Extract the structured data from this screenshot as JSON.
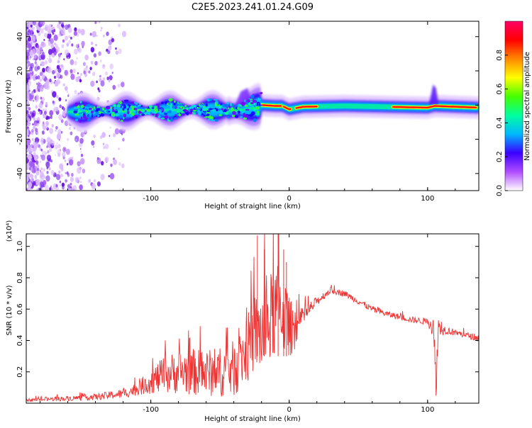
{
  "title": "C2E5.2023.241.01.24.G09",
  "colors": {
    "snr_line": "#ee3333",
    "frame": "#000000"
  },
  "chart_data": [
    {
      "type": "heatmap",
      "title": "",
      "xlabel": "Height of straight line (km)",
      "ylabel": "Frequency (Hz)",
      "xlim": [
        -190,
        137
      ],
      "ylim": [
        -50,
        49
      ],
      "xticks": [
        -100,
        0,
        100
      ],
      "yticks": [
        -40,
        -20,
        0,
        20,
        40
      ],
      "colorbar": {
        "label": "Normalized spectral amplitude",
        "range": [
          0,
          1
        ],
        "ticks": [
          0.0,
          0.2,
          0.4,
          0.6,
          0.8
        ],
        "colormap": [
          "#ffffff",
          "#b04cff",
          "#3a00ff",
          "#00b7ff",
          "#00ffa0",
          "#44ff00",
          "#ffff00",
          "#ff8800",
          "#ff0000",
          "#ff0066"
        ]
      },
      "ridge": [
        {
          "x": -150,
          "f": -4.0
        },
        {
          "x": -120,
          "f": -3.5
        },
        {
          "x": -90,
          "f": -3.0
        },
        {
          "x": -60,
          "f": -2.5
        },
        {
          "x": -40,
          "f": -3.5
        },
        {
          "x": -30,
          "f": -2.5
        },
        {
          "x": -20,
          "f": 0.0
        },
        {
          "x": -10,
          "f": -0.5
        },
        {
          "x": -5,
          "f": -0.5
        },
        {
          "x": 0,
          "f": -2.5
        },
        {
          "x": 10,
          "f": -1.0
        },
        {
          "x": 40,
          "f": -0.5
        },
        {
          "x": 70,
          "f": -1.0
        },
        {
          "x": 100,
          "f": -1.5
        },
        {
          "x": 105,
          "f": -0.5
        },
        {
          "x": 137,
          "f": -1.5
        }
      ]
    },
    {
      "type": "line",
      "title": "",
      "xlabel": "Height of straight line (km)",
      "ylabel": "SNR (10 * v/v)",
      "y_multiplier": "(x10⁴)",
      "xlim": [
        -190,
        137
      ],
      "ylim": [
        0,
        1.08
      ],
      "xticks": [
        -100,
        0,
        100
      ],
      "yticks": [
        0.2,
        0.4,
        0.6,
        0.8,
        1.0
      ],
      "series": [
        {
          "x": [
            -190,
            -160,
            -140,
            -120,
            -110,
            -100,
            -90,
            -80,
            -70,
            -60,
            -50,
            -40,
            -30,
            -25,
            -20,
            -15,
            -10,
            -5,
            0,
            5,
            10,
            20,
            30,
            40,
            50,
            60,
            70,
            80,
            90,
            100,
            104,
            106,
            108,
            112,
            120,
            130,
            137
          ],
          "values": [
            0.02,
            0.03,
            0.04,
            0.06,
            0.09,
            0.14,
            0.18,
            0.2,
            0.2,
            0.19,
            0.2,
            0.22,
            0.35,
            0.45,
            0.45,
            0.5,
            0.6,
            0.6,
            0.48,
            0.48,
            0.55,
            0.65,
            0.72,
            0.7,
            0.65,
            0.6,
            0.57,
            0.55,
            0.53,
            0.52,
            0.49,
            0.15,
            0.5,
            0.47,
            0.45,
            0.43,
            0.41
          ],
          "noise": [
            0.01,
            0.015,
            0.02,
            0.03,
            0.04,
            0.08,
            0.12,
            0.14,
            0.15,
            0.15,
            0.16,
            0.18,
            0.22,
            0.25,
            0.28,
            0.3,
            0.3,
            0.28,
            0.2,
            0.12,
            0.06,
            0.03,
            0.02,
            0.02,
            0.02,
            0.02,
            0.02,
            0.02,
            0.02,
            0.02,
            0.08,
            0.15,
            0.08,
            0.03,
            0.02,
            0.02,
            0.02
          ]
        }
      ]
    }
  ]
}
